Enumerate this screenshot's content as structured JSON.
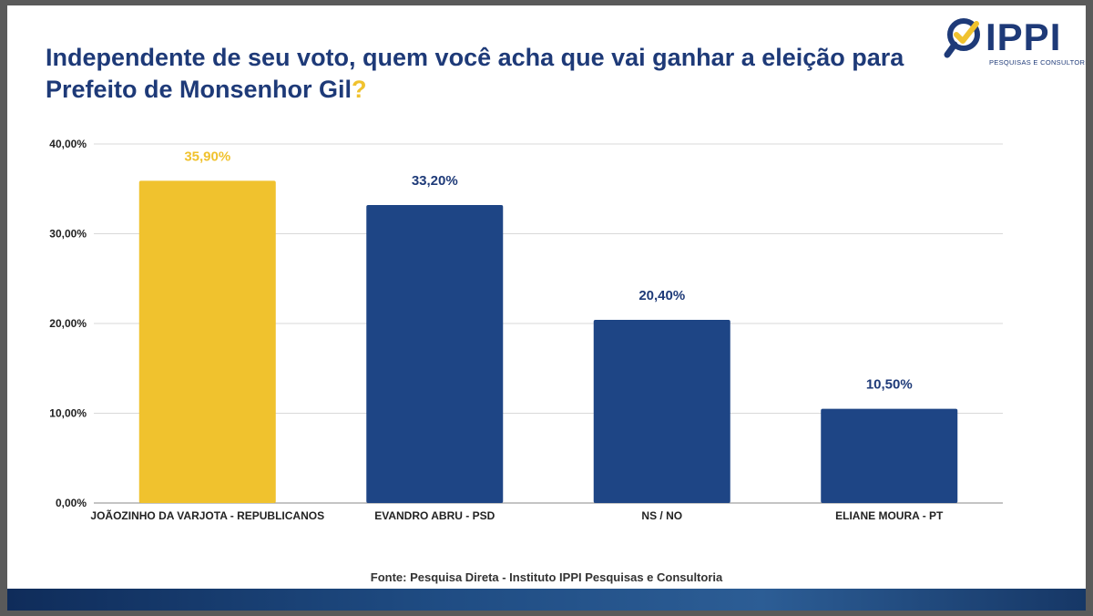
{
  "header": {
    "title": "Independente de seu voto, quem você acha que vai ganhar a eleição para Prefeito de Monsenhor Gil",
    "title_mark": "?"
  },
  "logo": {
    "text": "IPPI",
    "subtitle": "PESQUISAS E CONSULTORIA",
    "icon": "magnifier-check-icon"
  },
  "chart_data": {
    "type": "bar",
    "title": "",
    "xlabel": "",
    "ylabel": "",
    "categories": [
      "JOÃOZINHO DA VARJOTA - REPUBLICANOS",
      "EVANDRO ABRU - PSD",
      "NS / NO",
      "ELIANE MOURA - PT"
    ],
    "values": [
      35.9,
      33.2,
      20.4,
      10.5
    ],
    "value_labels": [
      "35,90%",
      "33,20%",
      "20,40%",
      "10,50%"
    ],
    "bar_colors": [
      "#f0c22e",
      "#1e4585",
      "#1e4585",
      "#1e4585"
    ],
    "label_colors": [
      "#f0c22e",
      "#1e3a78",
      "#1e3a78",
      "#1e3a78"
    ],
    "ylim": [
      0,
      40
    ],
    "yticks": [
      0,
      10,
      20,
      30,
      40
    ],
    "ytick_labels": [
      "0,00%",
      "10,00%",
      "20,00%",
      "30,00%",
      "40,00%"
    ],
    "grid": true,
    "legend": "none"
  },
  "footer": {
    "source": "Fonte: Pesquisa Direta - Instituto IPPI Pesquisas e Consultoria"
  }
}
